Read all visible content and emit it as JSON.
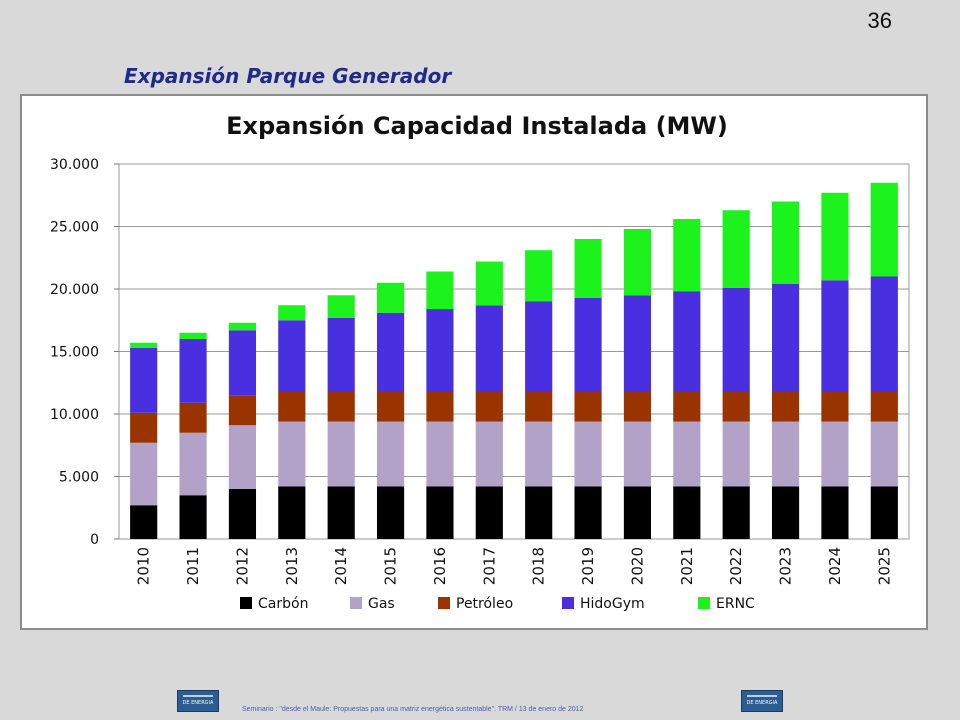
{
  "slide": {
    "number": "36",
    "title": "Expansión Parque Generador"
  },
  "footer": {
    "text": "Seminario : \"desde el Maule: Propuestas para una matriz energética sustentable\".  TRM  /  13 de enero de 2012",
    "logo_left_label": "DE ENERGIA",
    "logo_right_label": "DE ENERGIA"
  },
  "colors": {
    "Carbón": "#000000",
    "Gas": "#b3a2c7",
    "Petróleo": "#993300",
    "HidoGym": "#4a2fe0",
    "ERNC": "#1cf21c"
  },
  "chart_data": {
    "type": "bar",
    "stacked": true,
    "title": "Expansión Capacidad Instalada (MW)",
    "xlabel": "",
    "ylabel": "",
    "ylim": [
      0,
      30000
    ],
    "yticks": [
      0,
      5000,
      10000,
      15000,
      20000,
      25000,
      30000
    ],
    "ytick_labels": [
      "0",
      "5.000",
      "10.000",
      "15.000",
      "20.000",
      "25.000",
      "30.000"
    ],
    "grid": true,
    "legend_position": "bottom",
    "categories": [
      "2010",
      "2011",
      "2012",
      "2013",
      "2014",
      "2015",
      "2016",
      "2017",
      "2018",
      "2019",
      "2020",
      "2021",
      "2022",
      "2023",
      "2024",
      "2025"
    ],
    "series": [
      {
        "name": "Carbón",
        "values": [
          2700,
          3500,
          4000,
          4200,
          4200,
          4200,
          4200,
          4200,
          4200,
          4200,
          4200,
          4200,
          4200,
          4200,
          4200,
          4200
        ]
      },
      {
        "name": "Gas",
        "values": [
          5000,
          5000,
          5100,
          5200,
          5200,
          5200,
          5200,
          5200,
          5200,
          5200,
          5200,
          5200,
          5200,
          5200,
          5200,
          5200
        ]
      },
      {
        "name": "Petróleo",
        "values": [
          2400,
          2400,
          2400,
          2400,
          2400,
          2400,
          2400,
          2400,
          2400,
          2400,
          2400,
          2400,
          2400,
          2400,
          2400,
          2400
        ]
      },
      {
        "name": "HidoGym",
        "values": [
          5200,
          5100,
          5200,
          5700,
          5900,
          6300,
          6600,
          6900,
          7200,
          7500,
          7700,
          8000,
          8300,
          8600,
          8900,
          9200
        ]
      },
      {
        "name": "ERNC",
        "values": [
          400,
          500,
          600,
          1200,
          1800,
          2400,
          3000,
          3500,
          4100,
          4700,
          5300,
          5800,
          6200,
          6600,
          7000,
          7500
        ]
      }
    ]
  }
}
